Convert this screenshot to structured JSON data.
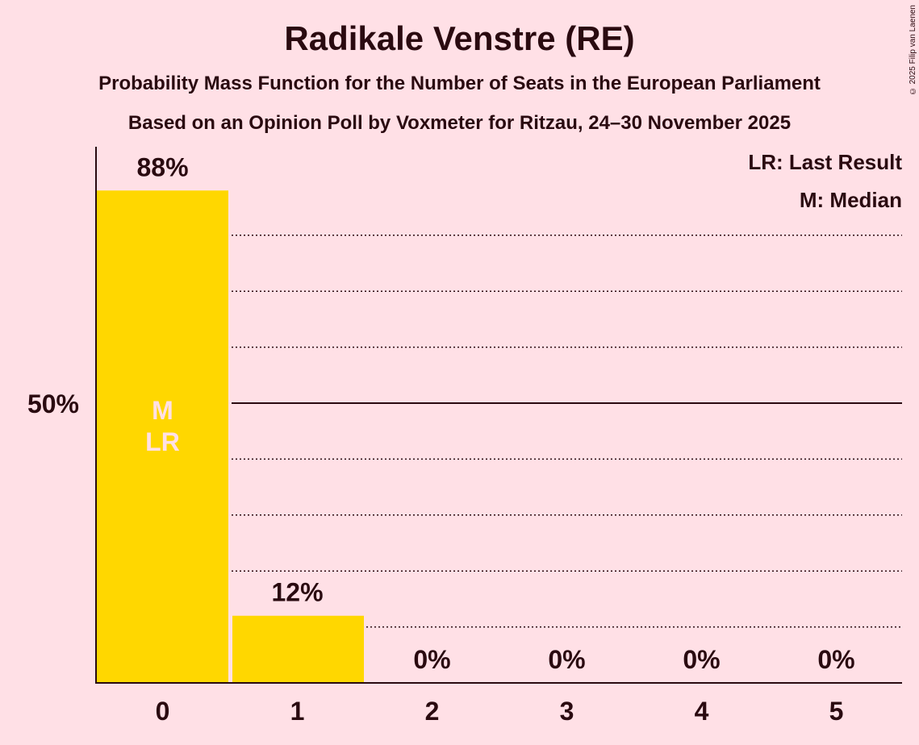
{
  "title": "Radikale Venstre (RE)",
  "subtitle1": "Probability Mass Function for the Number of Seats in the European Parliament",
  "subtitle2": "Based on an Opinion Poll by Voxmeter for Ritzau, 24–30 November 2025",
  "copyright": "© 2025 Filip van Laenen",
  "colors": {
    "bar": "#FFD700",
    "background": "#FFE0E6",
    "text": "#2a0a10",
    "marker_text": "#FFE0E6"
  },
  "chart_data": {
    "type": "bar",
    "title": "Radikale Venstre (RE)",
    "categories": [
      "0",
      "1",
      "2",
      "3",
      "4",
      "5"
    ],
    "values": [
      88,
      12,
      0,
      0,
      0,
      0
    ],
    "value_labels": [
      "88%",
      "12%",
      "0%",
      "0%",
      "0%",
      "0%"
    ],
    "xlabel": "",
    "ylabel": "",
    "ylim": [
      0,
      100
    ],
    "y_tick_labels": [
      {
        "value": 50,
        "label": "50%"
      }
    ],
    "gridlines_dotted": [
      10,
      20,
      30,
      40,
      60,
      70,
      80
    ],
    "gridline_solid": 50,
    "bar_markers": [
      {
        "category": "0",
        "lines": [
          "M",
          "LR"
        ]
      }
    ],
    "legend": [
      "LR: Last Result",
      "M: Median"
    ],
    "legend_position": "top-right"
  }
}
